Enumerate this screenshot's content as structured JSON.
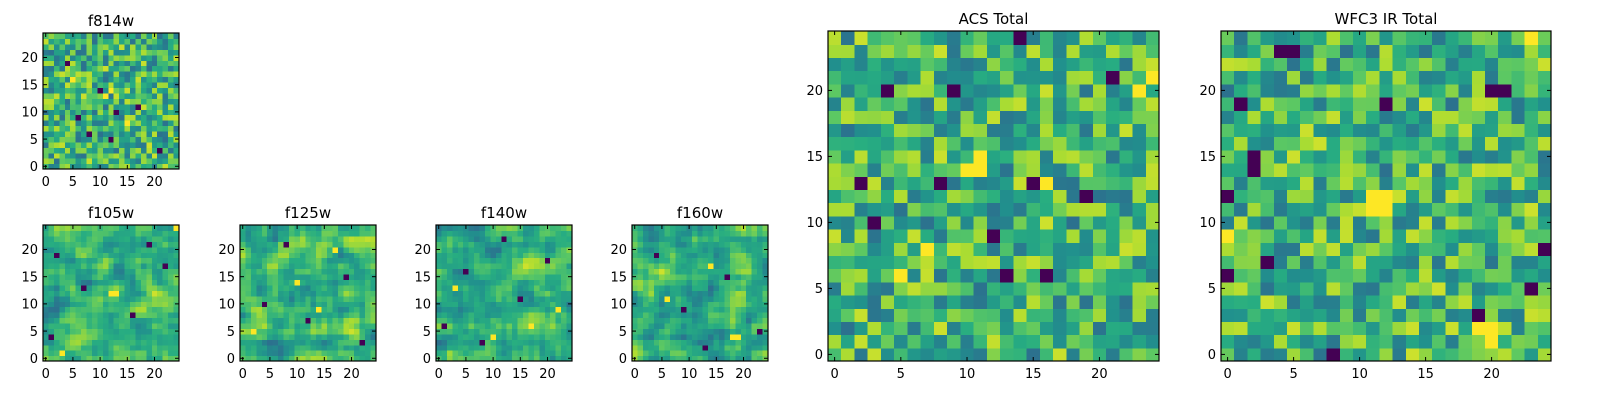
{
  "figure": {
    "description_free": true
  },
  "chart_data": [
    {
      "type": "heatmap",
      "title": "f814w",
      "xlabel": "",
      "ylabel": "",
      "grid_size": 25,
      "xlim": [
        -0.5,
        24.5
      ],
      "ylim": [
        -0.5,
        24.5
      ],
      "xticks": [
        0,
        5,
        10,
        15,
        20
      ],
      "yticks": [
        0,
        5,
        10,
        15,
        20
      ],
      "colormap": "viridis",
      "seed": 814,
      "smoothing": 0,
      "dark_pixels": [
        [
          13,
          10
        ],
        [
          8,
          6
        ],
        [
          12,
          5
        ],
        [
          17,
          11
        ],
        [
          4,
          19
        ],
        [
          21,
          3
        ],
        [
          10,
          14
        ],
        [
          6,
          9
        ]
      ],
      "bright_pixels": [
        [
          11,
          13
        ],
        [
          12,
          14
        ],
        [
          15,
          8
        ],
        [
          5,
          16
        ]
      ]
    },
    {
      "type": "heatmap",
      "title": "f105w",
      "xlabel": "",
      "ylabel": "",
      "grid_size": 25,
      "xlim": [
        -0.5,
        24.5
      ],
      "ylim": [
        -0.5,
        24.5
      ],
      "xticks": [
        0,
        5,
        10,
        15,
        20
      ],
      "yticks": [
        0,
        5,
        10,
        15,
        20
      ],
      "colormap": "viridis",
      "seed": 105,
      "smoothing": 1,
      "dark_pixels": [
        [
          2,
          19
        ],
        [
          22,
          17
        ],
        [
          1,
          4
        ],
        [
          7,
          13
        ],
        [
          16,
          8
        ],
        [
          19,
          21
        ]
      ],
      "bright_pixels": [
        [
          12,
          12
        ],
        [
          13,
          12
        ],
        [
          24,
          24
        ],
        [
          3,
          1
        ]
      ]
    },
    {
      "type": "heatmap",
      "title": "f125w",
      "xlabel": "",
      "ylabel": "",
      "grid_size": 25,
      "xlim": [
        -0.5,
        24.5
      ],
      "ylim": [
        -0.5,
        24.5
      ],
      "xticks": [
        0,
        5,
        10,
        15,
        20
      ],
      "yticks": [
        0,
        5,
        10,
        15,
        20
      ],
      "colormap": "viridis",
      "seed": 125,
      "smoothing": 1,
      "dark_pixels": [
        [
          12,
          7
        ],
        [
          4,
          10
        ],
        [
          19,
          15
        ],
        [
          8,
          21
        ],
        [
          22,
          3
        ]
      ],
      "bright_pixels": [
        [
          14,
          9
        ],
        [
          10,
          14
        ],
        [
          2,
          5
        ],
        [
          17,
          20
        ]
      ]
    },
    {
      "type": "heatmap",
      "title": "f140w",
      "xlabel": "",
      "ylabel": "",
      "grid_size": 25,
      "xlim": [
        -0.5,
        24.5
      ],
      "ylim": [
        -0.5,
        24.5
      ],
      "xticks": [
        0,
        5,
        10,
        15,
        20
      ],
      "yticks": [
        0,
        5,
        10,
        15,
        20
      ],
      "colormap": "viridis",
      "seed": 140,
      "smoothing": 1,
      "dark_pixels": [
        [
          15,
          11
        ],
        [
          1,
          6
        ],
        [
          8,
          3
        ],
        [
          20,
          18
        ],
        [
          5,
          16
        ],
        [
          12,
          22
        ]
      ],
      "bright_pixels": [
        [
          10,
          4
        ],
        [
          17,
          6
        ],
        [
          3,
          13
        ],
        [
          22,
          9
        ]
      ]
    },
    {
      "type": "heatmap",
      "title": "f160w",
      "xlabel": "",
      "ylabel": "",
      "grid_size": 25,
      "xlim": [
        -0.5,
        24.5
      ],
      "ylim": [
        -0.5,
        24.5
      ],
      "xticks": [
        0,
        5,
        10,
        15,
        20
      ],
      "yticks": [
        0,
        5,
        10,
        15,
        20
      ],
      "colormap": "viridis",
      "seed": 160,
      "smoothing": 1,
      "dark_pixels": [
        [
          23,
          5
        ],
        [
          9,
          9
        ],
        [
          17,
          15
        ],
        [
          4,
          19
        ],
        [
          13,
          2
        ]
      ],
      "bright_pixels": [
        [
          18,
          4
        ],
        [
          19,
          4
        ],
        [
          6,
          11
        ],
        [
          14,
          17
        ]
      ]
    },
    {
      "type": "heatmap",
      "title": "ACS Total",
      "xlabel": "",
      "ylabel": "",
      "grid_size": 25,
      "xlim": [
        -0.5,
        24.5
      ],
      "ylim": [
        -0.5,
        24.5
      ],
      "xticks": [
        0,
        5,
        10,
        15,
        20
      ],
      "yticks": [
        0,
        5,
        10,
        15,
        20
      ],
      "colormap": "viridis",
      "seed": 900,
      "smoothing": 0,
      "dark_pixels": [
        [
          14,
          24
        ],
        [
          4,
          20
        ],
        [
          9,
          20
        ],
        [
          21,
          21
        ],
        [
          15,
          13
        ],
        [
          2,
          13
        ],
        [
          8,
          13
        ],
        [
          19,
          12
        ],
        [
          12,
          9
        ],
        [
          13,
          6
        ],
        [
          16,
          6
        ],
        [
          3,
          10
        ]
      ],
      "bright_pixels": [
        [
          11,
          15
        ],
        [
          11,
          14
        ],
        [
          10,
          14
        ],
        [
          16,
          13
        ],
        [
          24,
          21
        ],
        [
          7,
          8
        ],
        [
          5,
          6
        ],
        [
          23,
          20
        ]
      ]
    },
    {
      "type": "heatmap",
      "title": "WFC3 IR Total",
      "xlabel": "",
      "ylabel": "",
      "grid_size": 25,
      "xlim": [
        -0.5,
        24.5
      ],
      "ylim": [
        -0.5,
        24.5
      ],
      "xticks": [
        0,
        5,
        10,
        15,
        20
      ],
      "yticks": [
        0,
        5,
        10,
        15,
        20
      ],
      "colormap": "viridis",
      "seed": 1200,
      "smoothing": 0,
      "dark_pixels": [
        [
          4,
          23
        ],
        [
          5,
          23
        ],
        [
          1,
          19
        ],
        [
          2,
          15
        ],
        [
          2,
          14
        ],
        [
          0,
          12
        ],
        [
          3,
          7
        ],
        [
          12,
          19
        ],
        [
          20,
          20
        ],
        [
          21,
          20
        ],
        [
          23,
          5
        ],
        [
          19,
          3
        ],
        [
          8,
          0
        ],
        [
          24,
          8
        ],
        [
          0,
          6
        ]
      ],
      "bright_pixels": [
        [
          11,
          12
        ],
        [
          12,
          12
        ],
        [
          11,
          11
        ],
        [
          12,
          11
        ],
        [
          19,
          2
        ],
        [
          20,
          2
        ],
        [
          20,
          1
        ],
        [
          0,
          9
        ],
        [
          23,
          24
        ]
      ]
    }
  ]
}
